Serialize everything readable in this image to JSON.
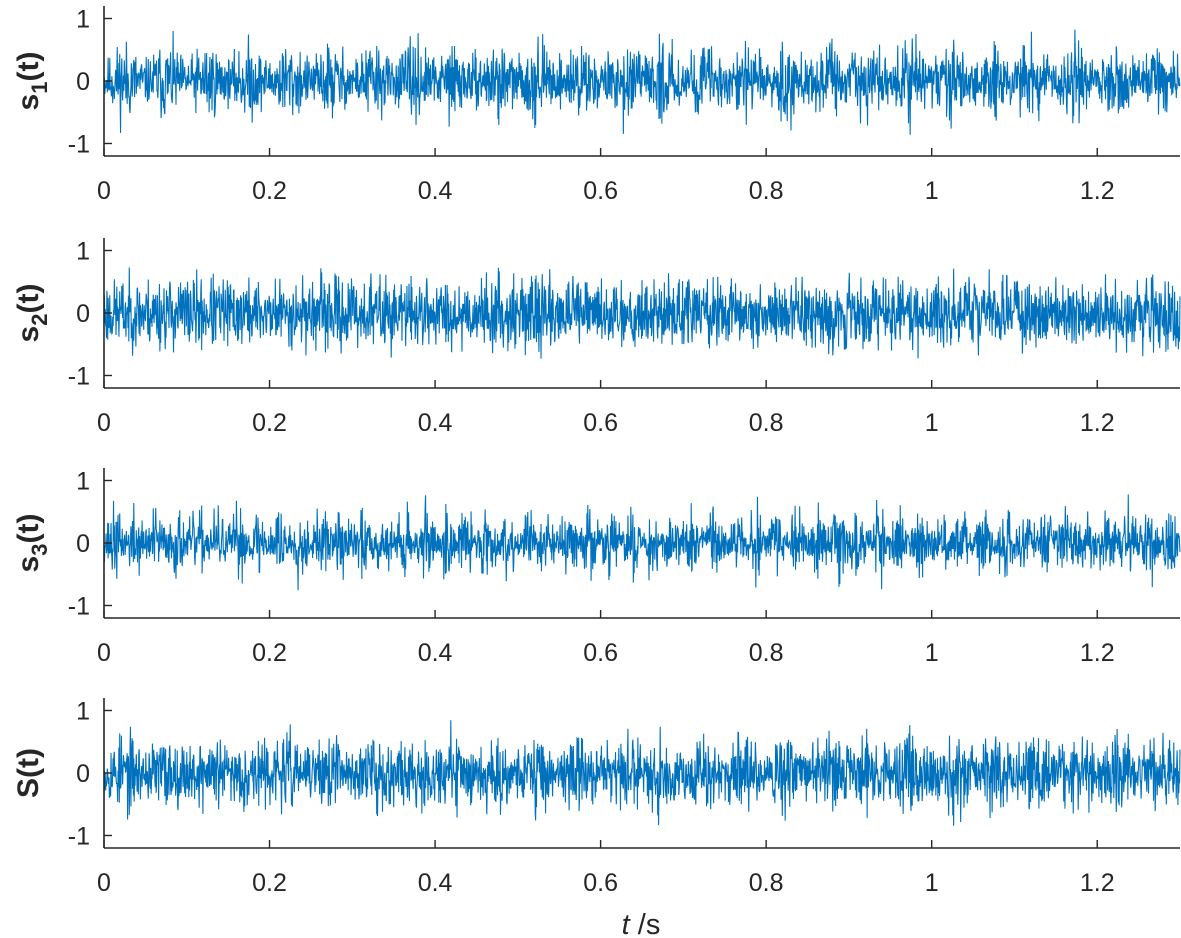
{
  "chart_data": [
    {
      "type": "line",
      "ylabel_main": "s",
      "ylabel_sub": "1",
      "ylabel_tail": "(t)",
      "xlim": [
        0,
        1.3
      ],
      "ylim": [
        -1.2,
        1.2
      ],
      "xticks": [
        0,
        0.2,
        0.4,
        0.6,
        0.8,
        1,
        1.2
      ],
      "xtick_labels": [
        "0",
        "0.2",
        "0.4",
        "0.6",
        "0.8",
        "1",
        "1.2"
      ],
      "yticks": [
        -1,
        0,
        1
      ],
      "ytick_labels": [
        "-1",
        "0",
        "1"
      ],
      "series": [
        {
          "color": "#0072BD",
          "amplitude": 0.95,
          "envelope_period": 0.05,
          "envelope_depth": 0.45,
          "samples": 2600,
          "seed": 11
        }
      ]
    },
    {
      "type": "line",
      "ylabel_main": "s",
      "ylabel_sub": "2",
      "ylabel_tail": "(t)",
      "xlim": [
        0,
        1.3
      ],
      "ylim": [
        -1.2,
        1.2
      ],
      "xticks": [
        0,
        0.2,
        0.4,
        0.6,
        0.8,
        1,
        1.2
      ],
      "xtick_labels": [
        "0",
        "0.2",
        "0.4",
        "0.6",
        "0.8",
        "1",
        "1.2"
      ],
      "yticks": [
        -1,
        0,
        1
      ],
      "ytick_labels": [
        "-1",
        "0",
        "1"
      ],
      "series": [
        {
          "color": "#0072BD",
          "amplitude": 0.85,
          "envelope_period": 0.2,
          "envelope_depth": 0.1,
          "samples": 2600,
          "seed": 23
        }
      ]
    },
    {
      "type": "line",
      "ylabel_main": "s",
      "ylabel_sub": "3",
      "ylabel_tail": "(t)",
      "xlim": [
        0,
        1.3
      ],
      "ylim": [
        -1.2,
        1.2
      ],
      "xticks": [
        0,
        0.2,
        0.4,
        0.6,
        0.8,
        1,
        1.2
      ],
      "xtick_labels": [
        "0",
        "0.2",
        "0.4",
        "0.6",
        "0.8",
        "1",
        "1.2"
      ],
      "yticks": [
        -1,
        0,
        1
      ],
      "ytick_labels": [
        "-1",
        "0",
        "1"
      ],
      "series": [
        {
          "color": "#0072BD",
          "amplitude": 0.9,
          "envelope_period": 0.025,
          "envelope_depth": 0.55,
          "samples": 2600,
          "seed": 37
        }
      ]
    },
    {
      "type": "line",
      "ylabel_main": "S",
      "ylabel_sub": "",
      "ylabel_tail": "(t)",
      "xlim": [
        0,
        1.3
      ],
      "ylim": [
        -1.2,
        1.2
      ],
      "xticks": [
        0,
        0.2,
        0.4,
        0.6,
        0.8,
        1,
        1.2
      ],
      "xtick_labels": [
        "0",
        "0.2",
        "0.4",
        "0.6",
        "0.8",
        "1",
        "1.2"
      ],
      "yticks": [
        -1,
        0,
        1
      ],
      "ytick_labels": [
        "-1",
        "0",
        "1"
      ],
      "series": [
        {
          "color": "#0072BD",
          "amplitude": 0.95,
          "envelope_period": 0.05,
          "envelope_depth": 0.35,
          "samples": 2600,
          "seed": 53
        }
      ]
    }
  ],
  "xlabel_var": "t",
  "xlabel_unit": " /s",
  "colors": {
    "line": "#0072BD",
    "axis": "#262626",
    "background": "#ffffff"
  }
}
